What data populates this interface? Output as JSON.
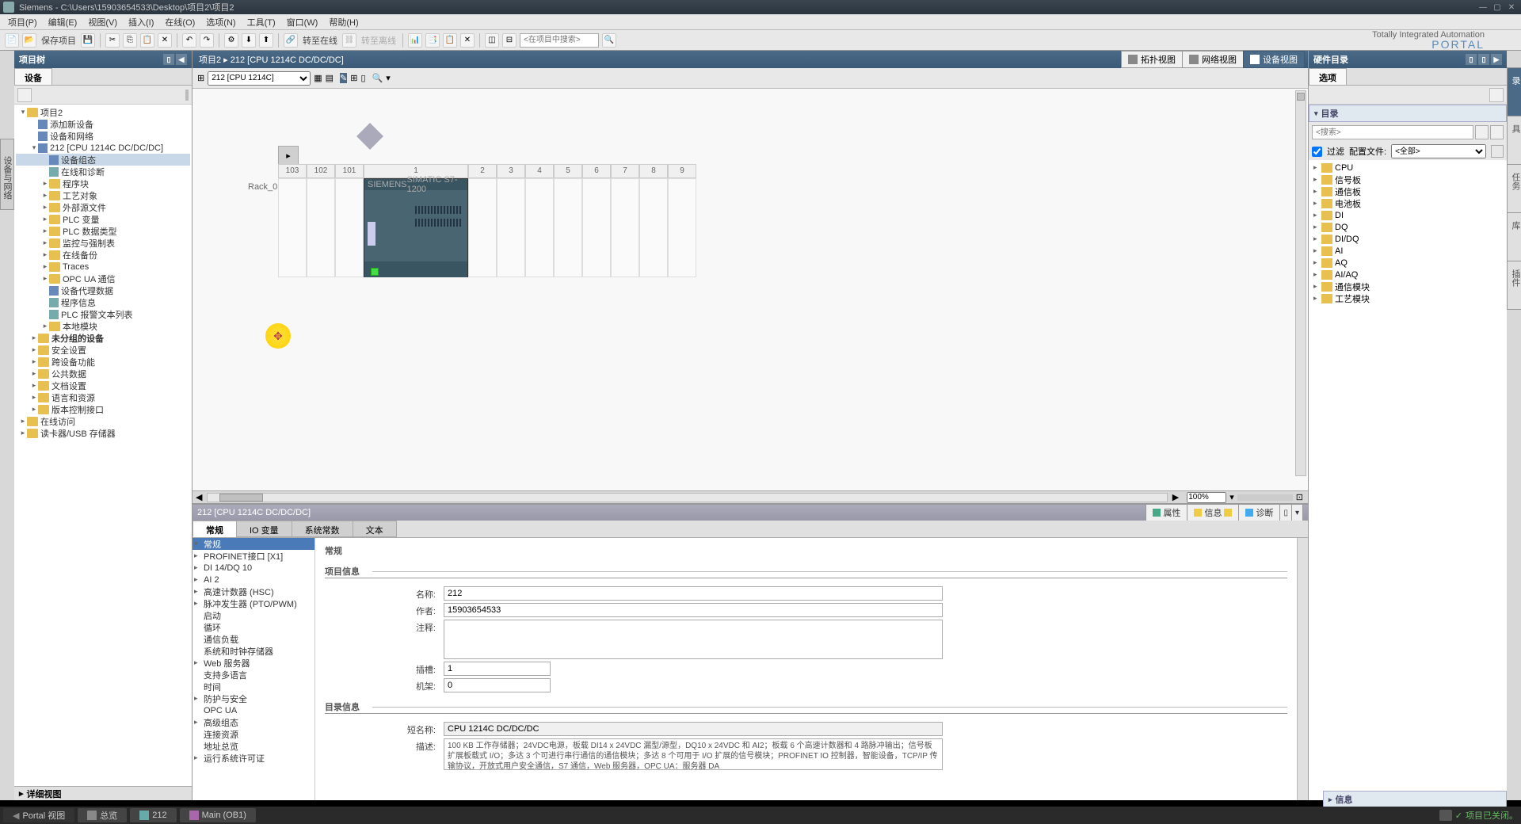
{
  "window": {
    "title": "Siemens  -  C:\\Users\\15903654533\\Desktop\\项目2\\项目2"
  },
  "menu": {
    "items": [
      "项目(P)",
      "编辑(E)",
      "视图(V)",
      "插入(I)",
      "在线(O)",
      "选项(N)",
      "工具(T)",
      "窗口(W)",
      "帮助(H)"
    ]
  },
  "toolbar": {
    "save": "保存项目",
    "goonline": "转至在线",
    "gooffline": "转至离线",
    "search_placeholder": "<在项目中搜索>",
    "brand1": "Totally Integrated Automation",
    "brand2": "PORTAL"
  },
  "left": {
    "title": "项目树",
    "tab": "设备",
    "side_tab": "设备与网络",
    "tree": [
      {
        "lvl": 0,
        "exp": "▾",
        "icon": "folder",
        "label": "项目2"
      },
      {
        "lvl": 1,
        "exp": "",
        "icon": "dev",
        "label": "添加新设备"
      },
      {
        "lvl": 1,
        "exp": "",
        "icon": "dev",
        "label": "设备和网络"
      },
      {
        "lvl": 1,
        "exp": "▾",
        "icon": "dev",
        "label": "212 [CPU 1214C DC/DC/DC]"
      },
      {
        "lvl": 2,
        "exp": "",
        "icon": "dev",
        "label": "设备组态",
        "sel": true
      },
      {
        "lvl": 2,
        "exp": "",
        "icon": "file",
        "label": "在线和诊断"
      },
      {
        "lvl": 2,
        "exp": "▸",
        "icon": "folder",
        "label": "程序块"
      },
      {
        "lvl": 2,
        "exp": "▸",
        "icon": "folder",
        "label": "工艺对象"
      },
      {
        "lvl": 2,
        "exp": "▸",
        "icon": "folder",
        "label": "外部源文件"
      },
      {
        "lvl": 2,
        "exp": "▸",
        "icon": "folder",
        "label": "PLC 变量"
      },
      {
        "lvl": 2,
        "exp": "▸",
        "icon": "folder",
        "label": "PLC 数据类型"
      },
      {
        "lvl": 2,
        "exp": "▸",
        "icon": "folder",
        "label": "监控与强制表"
      },
      {
        "lvl": 2,
        "exp": "▸",
        "icon": "folder",
        "label": "在线备份"
      },
      {
        "lvl": 2,
        "exp": "▸",
        "icon": "folder",
        "label": "Traces"
      },
      {
        "lvl": 2,
        "exp": "▸",
        "icon": "folder",
        "label": "OPC UA 通信"
      },
      {
        "lvl": 2,
        "exp": "",
        "icon": "dev",
        "label": "设备代理数据"
      },
      {
        "lvl": 2,
        "exp": "",
        "icon": "file",
        "label": "程序信息"
      },
      {
        "lvl": 2,
        "exp": "",
        "icon": "file",
        "label": "PLC 报警文本列表"
      },
      {
        "lvl": 2,
        "exp": "▸",
        "icon": "folder",
        "label": "本地模块"
      },
      {
        "lvl": 1,
        "exp": "▸",
        "icon": "folder",
        "label": "未分组的设备",
        "bold": true
      },
      {
        "lvl": 1,
        "exp": "▸",
        "icon": "folder",
        "label": "安全设置"
      },
      {
        "lvl": 1,
        "exp": "▸",
        "icon": "folder",
        "label": "跨设备功能"
      },
      {
        "lvl": 1,
        "exp": "▸",
        "icon": "folder",
        "label": "公共数据"
      },
      {
        "lvl": 1,
        "exp": "▸",
        "icon": "folder",
        "label": "文档设置"
      },
      {
        "lvl": 1,
        "exp": "▸",
        "icon": "folder",
        "label": "语言和资源"
      },
      {
        "lvl": 1,
        "exp": "▸",
        "icon": "folder",
        "label": "版本控制接口"
      },
      {
        "lvl": 0,
        "exp": "▸",
        "icon": "folder",
        "label": "在线访问"
      },
      {
        "lvl": 0,
        "exp": "▸",
        "icon": "folder",
        "label": "读卡器/USB 存储器"
      }
    ],
    "detail": "详细视图"
  },
  "center": {
    "breadcrumb": "项目2  ▸  212 [CPU 1214C DC/DC/DC]",
    "views": {
      "topology": "拓扑视图",
      "network": "网络视图",
      "device": "设备视图"
    },
    "device_select": "212 [CPU 1214C]",
    "rack": "Rack_0",
    "slots": [
      "103",
      "102",
      "101",
      "1",
      "2",
      "3",
      "4",
      "5",
      "6",
      "7",
      "8",
      "9"
    ],
    "cpu": {
      "vendor": "SIEMENS",
      "model": "SIMATIC S7-1200"
    },
    "zoom": "100%"
  },
  "props": {
    "title": "212 [CPU 1214C DC/DC/DC]",
    "btns": {
      "properties": "属性",
      "info": "信息",
      "diag": "诊断"
    },
    "tabs": [
      "常规",
      "IO 变量",
      "系统常数",
      "文本"
    ],
    "nav": [
      {
        "label": "常规",
        "sel": true,
        "arr": "▾"
      },
      {
        "label": "PROFINET接口 [X1]",
        "arr": "▸"
      },
      {
        "label": "DI 14/DQ 10",
        "arr": "▸"
      },
      {
        "label": "AI 2",
        "arr": "▸"
      },
      {
        "label": "高速计数器 (HSC)",
        "arr": "▸"
      },
      {
        "label": "脉冲发生器 (PTO/PWM)",
        "arr": "▸"
      },
      {
        "label": "启动"
      },
      {
        "label": "循环"
      },
      {
        "label": "通信负载"
      },
      {
        "label": "系统和时钟存储器"
      },
      {
        "label": "Web 服务器",
        "arr": "▸"
      },
      {
        "label": "支持多语言"
      },
      {
        "label": "时间"
      },
      {
        "label": "防护与安全",
        "arr": "▸"
      },
      {
        "label": "OPC UA"
      },
      {
        "label": "高级组态",
        "arr": "▸"
      },
      {
        "label": "连接资源"
      },
      {
        "label": "地址总览"
      },
      {
        "label": "运行系统许可证",
        "arr": "▸"
      }
    ],
    "section_general": "常规",
    "section_project": "项目信息",
    "section_catalog": "目录信息",
    "fields": {
      "name_label": "名称:",
      "name": "212",
      "author_label": "作者:",
      "author": "15903654533",
      "comment_label": "注释:",
      "slot_label": "插槽:",
      "slot": "1",
      "rack_label": "机架:",
      "rack": "0",
      "short_label": "短名称:",
      "short": "CPU 1214C DC/DC/DC",
      "desc_label": "描述:",
      "desc": "100 KB 工作存储器；24VDC电源，板载 DI14 x 24VDC 漏型/源型，DQ10 x 24VDC 和 AI2；板载 6 个高速计数器和 4 路脉冲输出；信号板扩展板载式 I/O；多达 3 个可进行串行通信的通信模块；多达 8 个可用于 I/O 扩展的信号模块；PROFINET IO 控制器，智能设备，TCP/IP 传输协议，开放式用户安全通信，S7 通信，Web 服务器，OPC UA：服务器 DA"
    }
  },
  "right": {
    "title": "硬件目录",
    "options": "选项",
    "catalog": "目录",
    "search_placeholder": "<搜索>",
    "filter": "过滤",
    "profile": "配置文件:",
    "profile_val": "<全部>",
    "side_tabs": [
      "硬件目录",
      "在线工具",
      "任务",
      "库",
      "插件"
    ],
    "tree": [
      "CPU",
      "信号板",
      "通信板",
      "电池板",
      "DI",
      "DQ",
      "DI/DQ",
      "AI",
      "AQ",
      "AI/AQ",
      "通信模块",
      "工艺模块"
    ],
    "info": "信息"
  },
  "taskbar": {
    "portal": "Portal 视图",
    "overview": "总览",
    "device": "212",
    "main": "Main (OB1)",
    "status": "项目已关闭。"
  }
}
